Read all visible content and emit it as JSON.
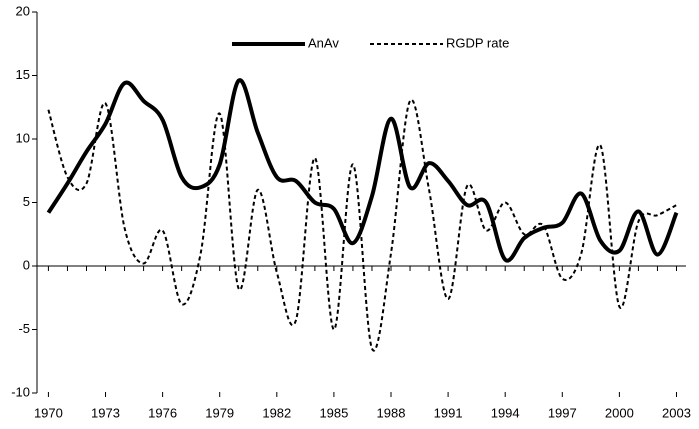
{
  "chart_data": {
    "type": "line",
    "x": [
      1970,
      1971,
      1972,
      1973,
      1974,
      1975,
      1976,
      1977,
      1978,
      1979,
      1980,
      1981,
      1982,
      1983,
      1984,
      1985,
      1986,
      1987,
      1988,
      1989,
      1990,
      1991,
      1992,
      1993,
      1994,
      1995,
      1996,
      1997,
      1998,
      1999,
      2000,
      2001,
      2002,
      2003
    ],
    "series": [
      {
        "name": "AnAv",
        "color": "#000000",
        "style": "solid",
        "values": [
          4.2,
          6.5,
          9.0,
          11.2,
          14.4,
          13.0,
          11.5,
          7.0,
          6.2,
          8.0,
          14.6,
          10.5,
          7.0,
          6.7,
          5.0,
          4.5,
          1.8,
          5.5,
          11.6,
          6.2,
          8.1,
          6.7,
          4.8,
          5.0,
          0.5,
          2.2,
          3.0,
          3.4,
          5.7,
          2.0,
          1.2,
          4.3,
          0.9,
          4.2
        ]
      },
      {
        "name": "RGDP rate",
        "color": "#000000",
        "style": "dashed",
        "values": [
          12.3,
          7.0,
          6.5,
          12.8,
          3.0,
          0.2,
          2.8,
          -3.0,
          1.0,
          12.0,
          -1.8,
          6.0,
          -0.5,
          -4.3,
          8.5,
          -5.0,
          8.0,
          -6.5,
          1.0,
          13.0,
          6.0,
          -2.6,
          6.3,
          2.8,
          5.0,
          2.5,
          3.2,
          -1.0,
          1.0,
          9.5,
          -3.2,
          3.5,
          4.0,
          4.8
        ]
      }
    ],
    "xlim": [
      1969.4,
      2003.5
    ],
    "xticks": [
      1970,
      1973,
      1976,
      1979,
      1982,
      1985,
      1988,
      1991,
      1994,
      1997,
      2000,
      2003
    ],
    "ylim": [
      -10,
      20
    ],
    "yticks": [
      -10,
      -5,
      0,
      5,
      10,
      15,
      20
    ],
    "grid": false,
    "smooth": true,
    "legend": "top"
  }
}
